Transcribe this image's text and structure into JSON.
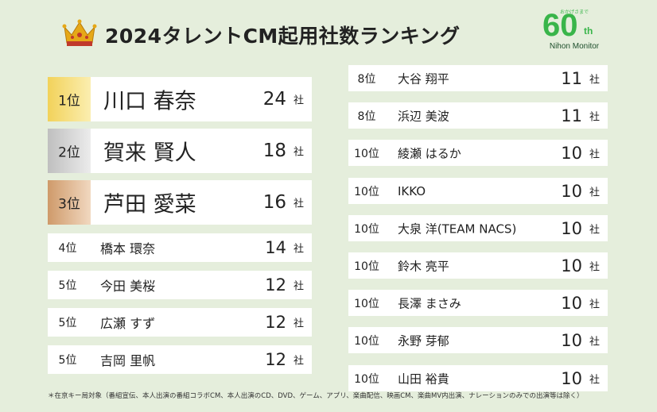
{
  "title": "2024タレントCM起用社数ランキング",
  "logo": {
    "small_text": "おかげさまで",
    "number": "60",
    "suffix": "th",
    "name": "Nihon Monitor"
  },
  "unit": "社",
  "left": [
    {
      "rank": "1位",
      "name": "川口 春奈",
      "count": "24"
    },
    {
      "rank": "2位",
      "name": "賀来 賢人",
      "count": "18"
    },
    {
      "rank": "3位",
      "name": "芦田 愛菜",
      "count": "16"
    },
    {
      "rank": "4位",
      "name": "橋本 環奈",
      "count": "14"
    },
    {
      "rank": "5位",
      "name": "今田 美桜",
      "count": "12"
    },
    {
      "rank": "5位",
      "name": "広瀬 すず",
      "count": "12"
    },
    {
      "rank": "5位",
      "name": "吉岡 里帆",
      "count": "12"
    }
  ],
  "right": [
    {
      "rank": "8位",
      "name": "大谷 翔平",
      "count": "11"
    },
    {
      "rank": "8位",
      "name": "浜辺 美波",
      "count": "11"
    },
    {
      "rank": "10位",
      "name": "綾瀬 はるか",
      "count": "10"
    },
    {
      "rank": "10位",
      "name": "IKKO",
      "count": "10"
    },
    {
      "rank": "10位",
      "name": "大泉 洋(TEAM NACS)",
      "count": "10"
    },
    {
      "rank": "10位",
      "name": "鈴木 亮平",
      "count": "10"
    },
    {
      "rank": "10位",
      "name": "長澤 まさみ",
      "count": "10"
    },
    {
      "rank": "10位",
      "name": "永野 芽郁",
      "count": "10"
    },
    {
      "rank": "10位",
      "name": "山田 裕貴",
      "count": "10"
    }
  ],
  "footnote": "＊在京キー局対象（番組宣伝、本人出演の番組コラボCM、本人出演のCD、DVD、ゲーム、アプリ、楽曲配信、映画CM、楽曲MV内出演、ナレーションのみでの出演等は除く）",
  "colors": {
    "background": "#e5eedc",
    "gold": "#f2d25a",
    "silver": "#bfbfbf",
    "bronze": "#cf9a6a",
    "logo_green": "#39b54a"
  }
}
